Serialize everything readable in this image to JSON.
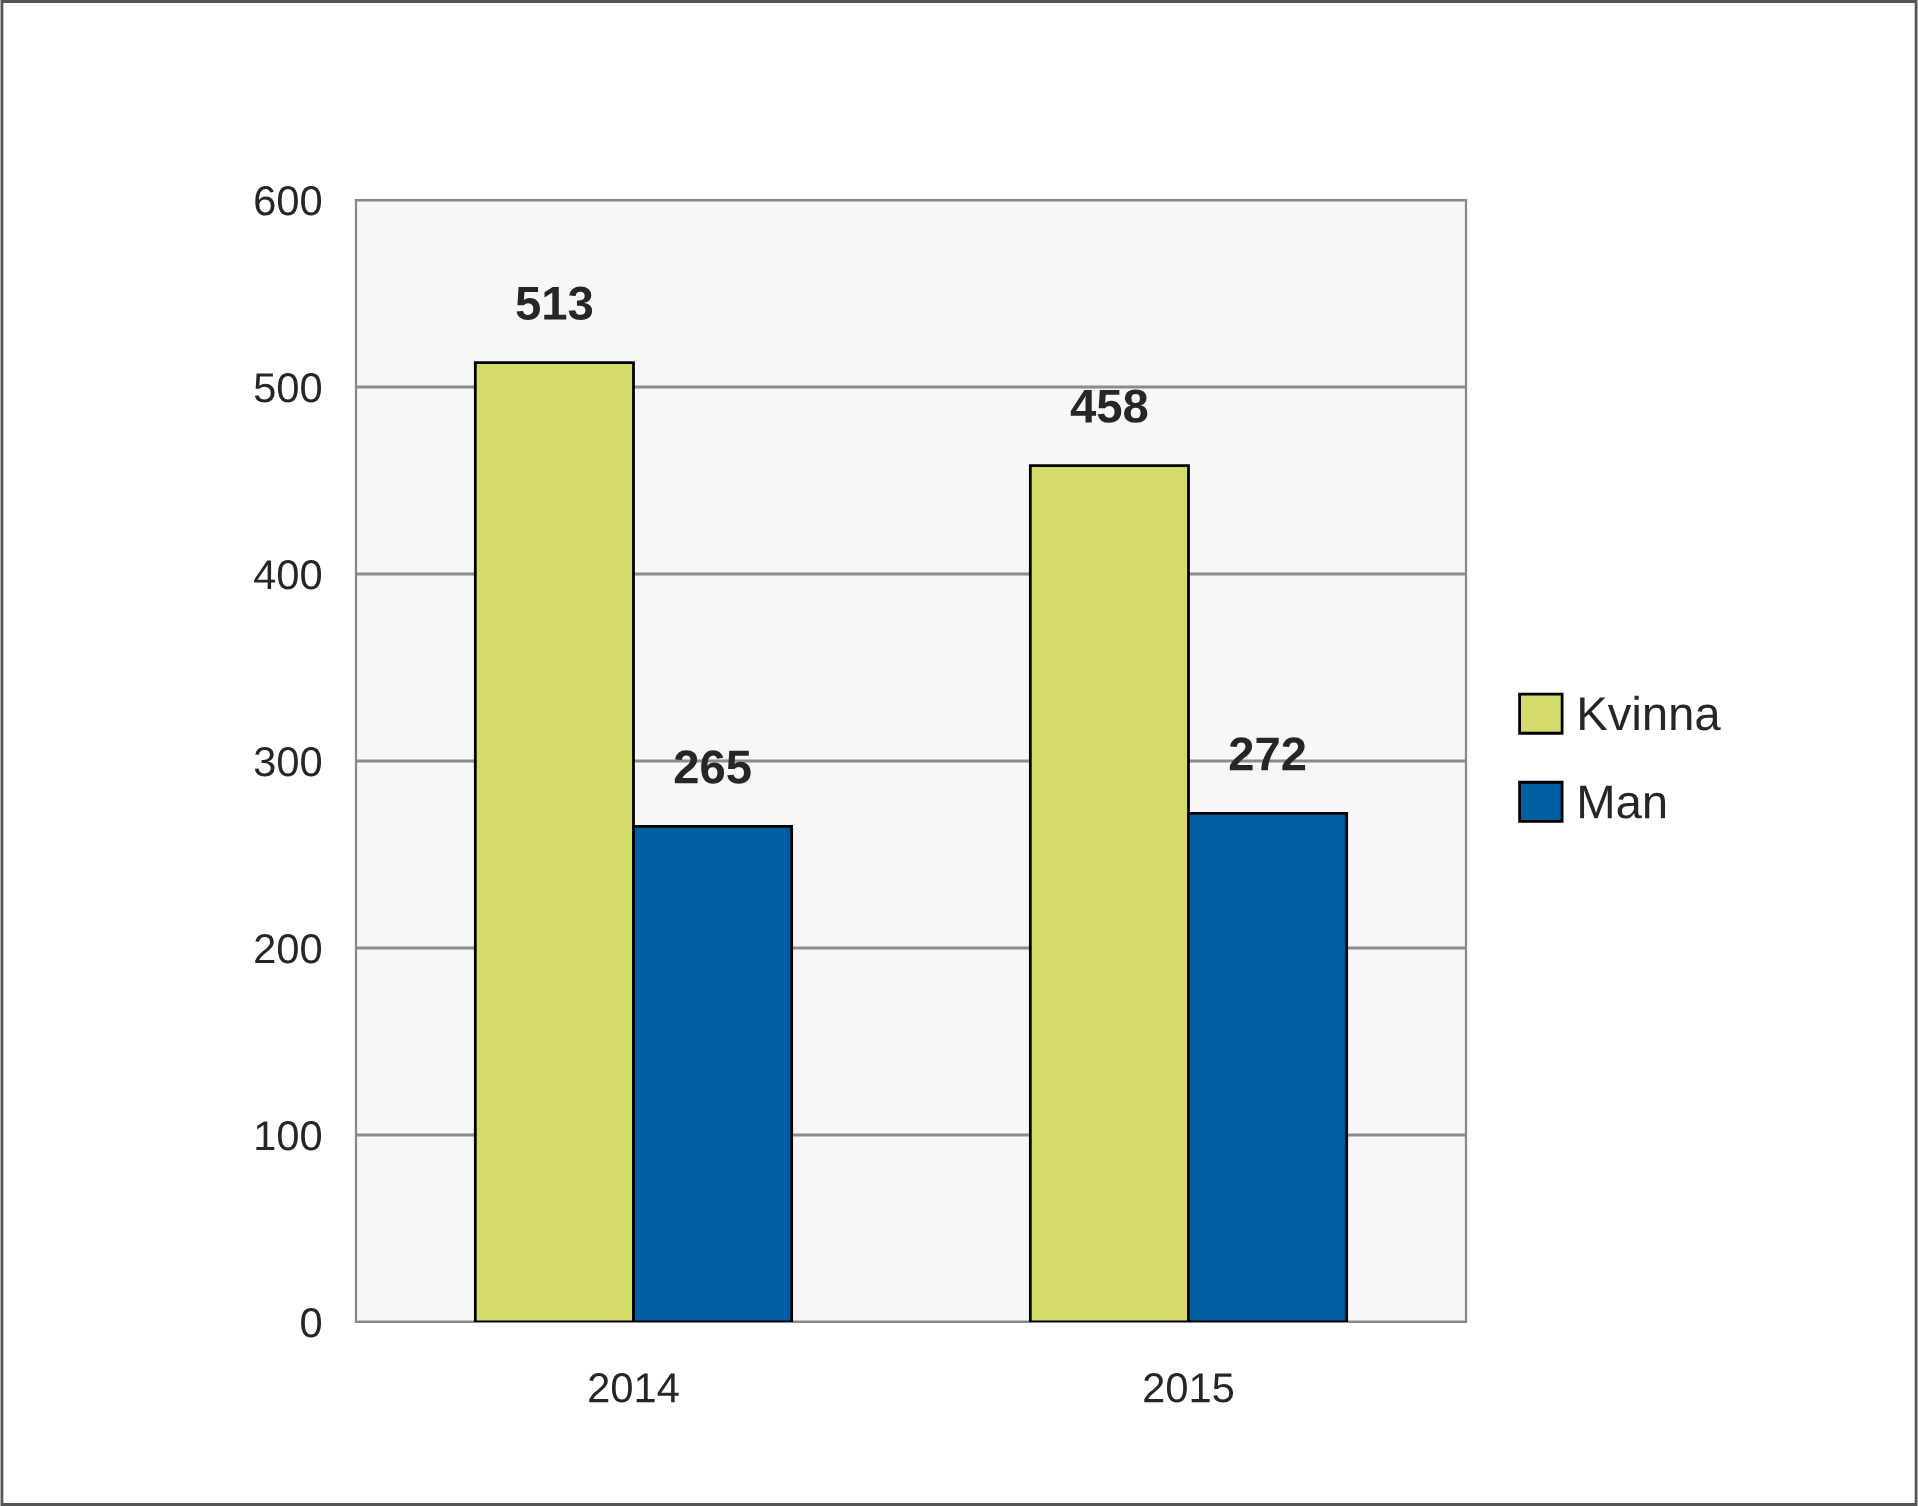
{
  "chart_data": {
    "type": "bar",
    "categories": [
      "2014",
      "2015"
    ],
    "series": [
      {
        "name": "Kvinna",
        "color": "#d4db6b",
        "values": [
          513,
          458
        ]
      },
      {
        "name": "Man",
        "color": "#005fa3",
        "values": [
          265,
          272
        ]
      }
    ],
    "ylim": [
      0,
      600
    ],
    "yticks": [
      0,
      100,
      200,
      300,
      400,
      500,
      600
    ],
    "grid": "y",
    "legend": "right",
    "data_labels": true
  }
}
